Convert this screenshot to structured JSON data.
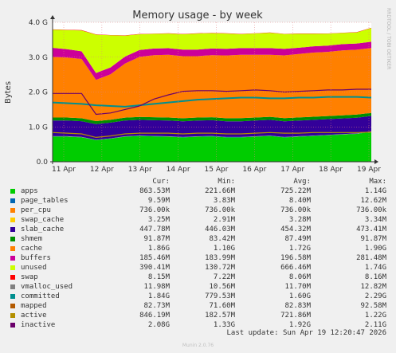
{
  "chart_data": {
    "type": "area",
    "title": "Memory usage - by week",
    "ylabel": "Bytes",
    "side_label": "RRDTOOL / TOBI OETIKER",
    "ylim": [
      0,
      4.0
    ],
    "y_unit": "G",
    "y_ticks": [
      "0.0",
      "1.0 G",
      "2.0 G",
      "3.0 G",
      "4.0 G"
    ],
    "y_tick_values": [
      0,
      1,
      2,
      3,
      4
    ],
    "x_ticks": [
      "11 Apr",
      "12 Apr",
      "13 Apr",
      "14 Apr",
      "15 Apr",
      "16 Apr",
      "17 Apr",
      "18 Apr",
      "19 Apr"
    ],
    "grid": true,
    "legend_placement": "bottom",
    "columns": [
      "Cur:",
      "Min:",
      "Avg:",
      "Max:"
    ],
    "stack_order": [
      "apps",
      "page_tables",
      "per_cpu",
      "swap_cache",
      "slab_cache",
      "shmem",
      "cache",
      "buffers",
      "unused",
      "swap"
    ],
    "series": [
      {
        "name": "apps",
        "color": "#00cc00",
        "cur": "863.53M",
        "min": "221.66M",
        "avg": "725.22M",
        "max": "1.14G",
        "values": [
          0.72,
          0.72,
          0.7,
          0.62,
          0.66,
          0.72,
          0.74,
          0.73,
          0.72,
          0.7,
          0.72,
          0.73,
          0.7,
          0.7,
          0.72,
          0.74,
          0.7,
          0.72,
          0.74,
          0.76,
          0.78,
          0.8,
          0.86
        ]
      },
      {
        "name": "page_tables",
        "color": "#0066b3",
        "cur": "9.59M",
        "min": "3.83M",
        "avg": "8.40M",
        "max": "12.62M",
        "values": [
          0.009,
          0.009,
          0.009,
          0.008,
          0.008,
          0.008,
          0.008,
          0.008,
          0.008,
          0.008,
          0.008,
          0.008,
          0.008,
          0.008,
          0.008,
          0.008,
          0.008,
          0.009,
          0.009,
          0.009,
          0.009,
          0.009,
          0.0096
        ]
      },
      {
        "name": "per_cpu",
        "color": "#ff8000",
        "cur": "736.00k",
        "min": "736.00k",
        "avg": "736.00k",
        "max": "736.00k",
        "values": [
          0.0007,
          0.0007,
          0.0007,
          0.0007,
          0.0007,
          0.0007,
          0.0007,
          0.0007,
          0.0007,
          0.0007,
          0.0007,
          0.0007,
          0.0007,
          0.0007,
          0.0007,
          0.0007,
          0.0007,
          0.0007,
          0.0007,
          0.0007,
          0.0007,
          0.0007,
          0.0007
        ]
      },
      {
        "name": "swap_cache",
        "color": "#ffcc00",
        "cur": "3.25M",
        "min": "2.91M",
        "avg": "3.28M",
        "max": "3.34M",
        "values": [
          0.003,
          0.003,
          0.003,
          0.003,
          0.003,
          0.003,
          0.003,
          0.003,
          0.003,
          0.003,
          0.003,
          0.003,
          0.003,
          0.003,
          0.003,
          0.003,
          0.003,
          0.003,
          0.003,
          0.003,
          0.003,
          0.003,
          0.003
        ]
      },
      {
        "name": "slab_cache",
        "color": "#330099",
        "cur": "447.78M",
        "min": "446.03M",
        "avg": "454.32M",
        "max": "473.41M",
        "values": [
          0.45,
          0.45,
          0.45,
          0.45,
          0.45,
          0.45,
          0.45,
          0.45,
          0.45,
          0.45,
          0.45,
          0.45,
          0.45,
          0.45,
          0.45,
          0.45,
          0.45,
          0.45,
          0.45,
          0.45,
          0.45,
          0.45,
          0.44
        ]
      },
      {
        "name": "shmem",
        "color": "#008f00",
        "cur": "91.87M",
        "min": "83.42M",
        "avg": "87.49M",
        "max": "91.87M",
        "values": [
          0.085,
          0.085,
          0.085,
          0.085,
          0.085,
          0.085,
          0.086,
          0.086,
          0.086,
          0.086,
          0.087,
          0.087,
          0.087,
          0.088,
          0.088,
          0.088,
          0.089,
          0.089,
          0.089,
          0.09,
          0.09,
          0.09,
          0.09
        ]
      },
      {
        "name": "cache",
        "color": "#ff8000",
        "cur": "1.86G",
        "min": "1.10G",
        "avg": "1.72G",
        "max": "1.90G",
        "values": [
          1.74,
          1.72,
          1.7,
          1.18,
          1.3,
          1.55,
          1.72,
          1.78,
          1.8,
          1.78,
          1.76,
          1.78,
          1.8,
          1.82,
          1.8,
          1.78,
          1.8,
          1.82,
          1.84,
          1.84,
          1.86,
          1.86,
          1.86
        ]
      },
      {
        "name": "buffers",
        "color": "#cc0099",
        "cur": "185.46M",
        "min": "183.99M",
        "avg": "196.58M",
        "max": "281.48M",
        "values": [
          0.26,
          0.24,
          0.22,
          0.2,
          0.2,
          0.2,
          0.2,
          0.19,
          0.19,
          0.19,
          0.19,
          0.19,
          0.19,
          0.19,
          0.19,
          0.19,
          0.19,
          0.18,
          0.18,
          0.18,
          0.18,
          0.18,
          0.18
        ]
      },
      {
        "name": "unused",
        "color": "#ccff00",
        "cur": "390.41M",
        "min": "130.72M",
        "avg": "666.46M",
        "max": "1.74G",
        "values": [
          0.52,
          0.55,
          0.6,
          1.1,
          0.92,
          0.6,
          0.45,
          0.42,
          0.42,
          0.44,
          0.46,
          0.44,
          0.44,
          0.4,
          0.42,
          0.44,
          0.42,
          0.4,
          0.36,
          0.34,
          0.32,
          0.32,
          0.39
        ]
      },
      {
        "name": "swap",
        "color": "#ff0000",
        "cur": "8.15M",
        "min": "7.22M",
        "avg": "8.06M",
        "max": "8.16M",
        "values": [
          0.008,
          0.008,
          0.008,
          0.008,
          0.008,
          0.008,
          0.008,
          0.008,
          0.008,
          0.008,
          0.008,
          0.008,
          0.008,
          0.008,
          0.008,
          0.008,
          0.008,
          0.008,
          0.008,
          0.008,
          0.008,
          0.008,
          0.008
        ]
      }
    ],
    "lines": [
      {
        "name": "vmalloc_used",
        "color": "#808080",
        "cur": "11.98M",
        "min": "10.56M",
        "avg": "11.70M",
        "max": "12.82M"
      },
      {
        "name": "committed",
        "color": "#008f8f",
        "cur": "1.84G",
        "min": "779.53M",
        "avg": "1.60G",
        "max": "2.29G",
        "values": [
          1.7,
          1.68,
          1.66,
          1.62,
          1.6,
          1.58,
          1.62,
          1.66,
          1.7,
          1.74,
          1.78,
          1.8,
          1.82,
          1.84,
          1.84,
          1.82,
          1.82,
          1.84,
          1.84,
          1.86,
          1.86,
          1.86,
          1.84
        ]
      },
      {
        "name": "mapped",
        "color": "#b35a00",
        "cur": "82.73M",
        "min": "71.60M",
        "avg": "82.83M",
        "max": "92.58M"
      },
      {
        "name": "active",
        "color": "#b38f00",
        "cur": "846.19M",
        "min": "182.57M",
        "avg": "721.86M",
        "max": "1.22G",
        "values": [
          0.84,
          0.82,
          0.8,
          0.7,
          0.74,
          0.8,
          0.82,
          0.82,
          0.82,
          0.8,
          0.82,
          0.82,
          0.8,
          0.8,
          0.82,
          0.84,
          0.82,
          0.82,
          0.84,
          0.84,
          0.84,
          0.84,
          0.85
        ]
      },
      {
        "name": "inactive",
        "color": "#6b006b",
        "cur": "2.08G",
        "min": "1.33G",
        "avg": "1.92G",
        "max": "2.11G",
        "values": [
          1.96,
          1.96,
          1.96,
          1.36,
          1.4,
          1.5,
          1.6,
          1.8,
          1.92,
          2.02,
          2.04,
          2.04,
          2.02,
          2.04,
          2.06,
          2.04,
          2.0,
          2.02,
          2.04,
          2.06,
          2.06,
          2.08,
          2.08
        ]
      }
    ],
    "last_update_label": "Last update:",
    "last_update": "Sun Apr 19 12:20:47 2026",
    "version": "Munin 2.0.76"
  }
}
